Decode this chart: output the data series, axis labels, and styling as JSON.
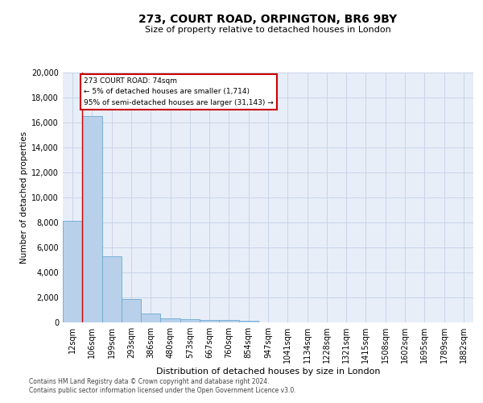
{
  "title": "273, COURT ROAD, ORPINGTON, BR6 9BY",
  "subtitle": "Size of property relative to detached houses in London",
  "xlabel": "Distribution of detached houses by size in London",
  "ylabel": "Number of detached properties",
  "annotation_title": "273 COURT ROAD: 74sqm",
  "annotation_line1": "← 5% of detached houses are smaller (1,714)",
  "annotation_line2": "95% of semi-detached houses are larger (31,143) →",
  "footer1": "Contains HM Land Registry data © Crown copyright and database right 2024.",
  "footer2": "Contains public sector information licensed under the Open Government Licence v3.0.",
  "bar_color": "#b8d0ea",
  "bar_edge_color": "#6aaad4",
  "grid_color": "#c8d4e8",
  "bg_color": "#e8eef8",
  "annotation_box_color": "#cc0000",
  "vline_color": "#cc0000",
  "ylim": [
    0,
    20000
  ],
  "yticks": [
    0,
    2000,
    4000,
    6000,
    8000,
    10000,
    12000,
    14000,
    16000,
    18000,
    20000
  ],
  "categories": [
    "12sqm",
    "106sqm",
    "199sqm",
    "293sqm",
    "386sqm",
    "480sqm",
    "573sqm",
    "667sqm",
    "760sqm",
    "854sqm",
    "947sqm",
    "1041sqm",
    "1134sqm",
    "1228sqm",
    "1321sqm",
    "1415sqm",
    "1508sqm",
    "1602sqm",
    "1695sqm",
    "1789sqm",
    "1882sqm"
  ],
  "values": [
    8100,
    16500,
    5300,
    1850,
    700,
    350,
    270,
    200,
    180,
    150,
    0,
    0,
    0,
    0,
    0,
    0,
    0,
    0,
    0,
    0,
    0
  ],
  "title_fontsize": 10,
  "subtitle_fontsize": 8,
  "ylabel_fontsize": 7.5,
  "xlabel_fontsize": 8,
  "tick_fontsize": 7,
  "footer_fontsize": 5.5
}
